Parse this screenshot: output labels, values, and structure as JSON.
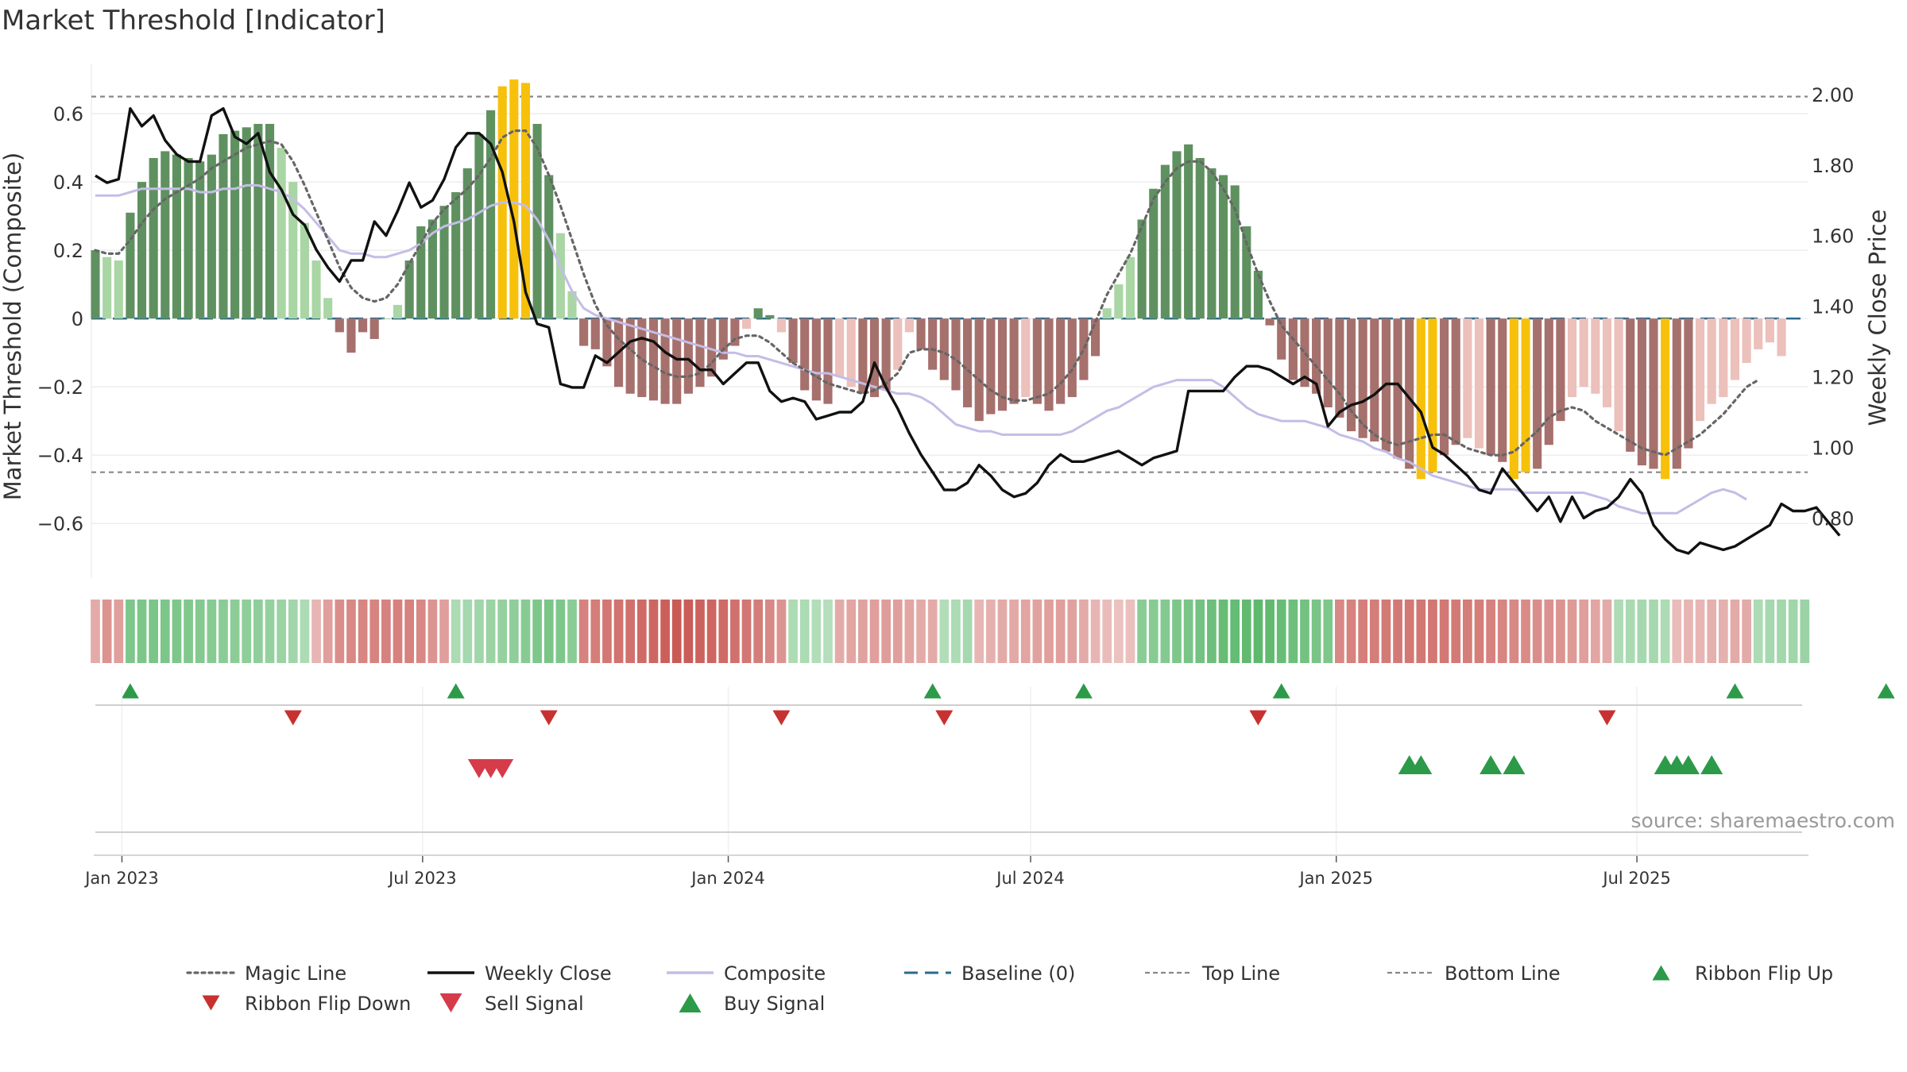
{
  "title": "Market Threshold [Indicator]",
  "source": "source: sharemaestro.com",
  "colors": {
    "bar_pos_strong": "#5f9160",
    "bar_pos_weak": "#a9d6a4",
    "bar_neg_strong": "#a6706c",
    "bar_neg_weak": "#ecc0bb",
    "bar_extreme": "#f7c10b",
    "weekly_close": "#111111",
    "composite": "#c4bde6",
    "magic_line": "#666666",
    "baseline": "#2b6a8e",
    "threshold_lines": "#888888",
    "buy": "#2c9a48",
    "sell": "#d63b4a",
    "ribbon_flip_up": "#2c9a48",
    "ribbon_flip_down": "#c7312f",
    "ribbon_green": "#5cb86c",
    "ribbon_red": "#c95a55"
  },
  "chart_data": {
    "type": "bar",
    "x_start": "2022-12-16",
    "left_axis": {
      "label": "Market Threshold (Composite)",
      "ylim": [
        -0.76,
        0.77
      ],
      "ticks": [
        0.6,
        0.4,
        0.2,
        0,
        -0.2,
        -0.4,
        -0.6
      ],
      "tick_labels": [
        "0.6",
        "0.4",
        "0.2",
        "0",
        "−0.2",
        "−0.4",
        "−0.6"
      ]
    },
    "right_axis": {
      "label": "Weekly Close Price",
      "ylim": [
        0.63,
        2.11
      ],
      "ticks": [
        2.0,
        1.8,
        1.6,
        1.4,
        1.2,
        1.0,
        0.8
      ],
      "tick_labels": [
        "2.00",
        "1.80",
        "1.60",
        "1.40",
        "1.20",
        "1.00",
        "0.80"
      ]
    },
    "x_ticks": [
      {
        "date": "2023-01-01",
        "label": "Jan 2023"
      },
      {
        "date": "2023-07-01",
        "label": "Jul 2023"
      },
      {
        "date": "2024-01-01",
        "label": "Jan 2024"
      },
      {
        "date": "2024-07-01",
        "label": "Jul 2024"
      },
      {
        "date": "2025-01-01",
        "label": "Jan 2025"
      },
      {
        "date": "2025-07-01",
        "label": "Jul 2025"
      }
    ],
    "top_line": 0.65,
    "bottom_line": -0.45,
    "composite_bars": [
      0.2,
      0.18,
      0.17,
      0.31,
      0.4,
      0.47,
      0.49,
      0.48,
      0.47,
      0.46,
      0.48,
      0.54,
      0.55,
      0.56,
      0.57,
      0.57,
      0.5,
      0.4,
      0.28,
      0.17,
      0.06,
      -0.04,
      -0.1,
      -0.04,
      -0.06,
      0,
      0.04,
      0.17,
      0.27,
      0.29,
      0.33,
      0.37,
      0.44,
      0.54,
      0.61,
      0.68,
      0.7,
      0.69,
      0.57,
      0.42,
      0.25,
      0.08,
      -0.08,
      -0.09,
      -0.14,
      -0.2,
      -0.22,
      -0.23,
      -0.24,
      -0.25,
      -0.25,
      -0.22,
      -0.2,
      -0.17,
      -0.12,
      -0.08,
      -0.03,
      0.03,
      0.01,
      -0.04,
      -0.13,
      -0.21,
      -0.24,
      -0.25,
      -0.17,
      -0.2,
      -0.22,
      -0.23,
      -0.21,
      -0.15,
      -0.04,
      -0.09,
      -0.15,
      -0.18,
      -0.21,
      -0.26,
      -0.3,
      -0.28,
      -0.27,
      -0.25,
      -0.23,
      -0.25,
      -0.27,
      -0.25,
      -0.23,
      -0.18,
      -0.11,
      0.03,
      0.1,
      0.18,
      0.29,
      0.38,
      0.45,
      0.49,
      0.51,
      0.47,
      0.44,
      0.42,
      0.39,
      0.27,
      0.14,
      -0.02,
      -0.12,
      -0.18,
      -0.2,
      -0.22,
      -0.26,
      -0.29,
      -0.33,
      -0.35,
      -0.36,
      -0.39,
      -0.41,
      -0.44,
      -0.47,
      -0.45,
      -0.4,
      -0.37,
      -0.35,
      -0.38,
      -0.4,
      -0.42,
      -0.47,
      -0.45,
      -0.44,
      -0.37,
      -0.3,
      -0.23,
      -0.2,
      -0.22,
      -0.26,
      -0.33,
      -0.39,
      -0.43,
      -0.44,
      -0.47,
      -0.44,
      -0.38,
      -0.3,
      -0.25,
      -0.23,
      -0.18,
      -0.13,
      -0.09,
      -0.07,
      -0.11
    ],
    "magic_line": [
      0.2,
      0.19,
      0.19,
      0.23,
      0.28,
      0.32,
      0.35,
      0.37,
      0.39,
      0.41,
      0.44,
      0.46,
      0.48,
      0.5,
      0.51,
      0.52,
      0.51,
      0.46,
      0.39,
      0.31,
      0.23,
      0.15,
      0.09,
      0.06,
      0.05,
      0.06,
      0.1,
      0.16,
      0.22,
      0.28,
      0.32,
      0.35,
      0.38,
      0.42,
      0.47,
      0.53,
      0.55,
      0.55,
      0.5,
      0.42,
      0.33,
      0.23,
      0.13,
      0.04,
      -0.02,
      -0.06,
      -0.09,
      -0.12,
      -0.14,
      -0.16,
      -0.17,
      -0.17,
      -0.16,
      -0.13,
      -0.09,
      -0.06,
      -0.05,
      -0.05,
      -0.07,
      -0.1,
      -0.13,
      -0.15,
      -0.17,
      -0.19,
      -0.2,
      -0.21,
      -0.22,
      -0.21,
      -0.19,
      -0.16,
      -0.1,
      -0.09,
      -0.09,
      -0.1,
      -0.12,
      -0.15,
      -0.18,
      -0.21,
      -0.23,
      -0.24,
      -0.24,
      -0.23,
      -0.22,
      -0.19,
      -0.15,
      -0.09,
      -0.01,
      0.07,
      0.13,
      0.19,
      0.27,
      0.35,
      0.4,
      0.44,
      0.46,
      0.46,
      0.43,
      0.38,
      0.32,
      0.22,
      0.13,
      0.05,
      -0.02,
      -0.06,
      -0.1,
      -0.14,
      -0.18,
      -0.22,
      -0.27,
      -0.31,
      -0.34,
      -0.36,
      -0.37,
      -0.36,
      -0.35,
      -0.34,
      -0.34,
      -0.36,
      -0.38,
      -0.39,
      -0.4,
      -0.4,
      -0.39,
      -0.36,
      -0.33,
      -0.29,
      -0.27,
      -0.26,
      -0.27,
      -0.3,
      -0.32,
      -0.34,
      -0.36,
      -0.38,
      -0.39,
      -0.4,
      -0.38,
      -0.36,
      -0.34,
      -0.31,
      -0.28,
      -0.24,
      -0.2,
      -0.18
    ],
    "composite_line": [
      0.36,
      0.36,
      0.36,
      0.37,
      0.38,
      0.38,
      0.38,
      0.38,
      0.38,
      0.37,
      0.37,
      0.38,
      0.38,
      0.39,
      0.39,
      0.38,
      0.37,
      0.35,
      0.32,
      0.28,
      0.24,
      0.2,
      0.19,
      0.19,
      0.18,
      0.18,
      0.19,
      0.2,
      0.22,
      0.25,
      0.27,
      0.28,
      0.29,
      0.31,
      0.33,
      0.34,
      0.34,
      0.33,
      0.29,
      0.23,
      0.15,
      0.08,
      0.03,
      0.01,
      0,
      -0.01,
      -0.02,
      -0.03,
      -0.04,
      -0.05,
      -0.06,
      -0.07,
      -0.08,
      -0.09,
      -0.1,
      -0.1,
      -0.11,
      -0.11,
      -0.12,
      -0.13,
      -0.14,
      -0.15,
      -0.16,
      -0.16,
      -0.17,
      -0.18,
      -0.19,
      -0.2,
      -0.21,
      -0.22,
      -0.22,
      -0.23,
      -0.25,
      -0.28,
      -0.31,
      -0.32,
      -0.33,
      -0.33,
      -0.34,
      -0.34,
      -0.34,
      -0.34,
      -0.34,
      -0.34,
      -0.33,
      -0.31,
      -0.29,
      -0.27,
      -0.26,
      -0.24,
      -0.22,
      -0.2,
      -0.19,
      -0.18,
      -0.18,
      -0.18,
      -0.18,
      -0.2,
      -0.23,
      -0.26,
      -0.28,
      -0.29,
      -0.3,
      -0.3,
      -0.3,
      -0.31,
      -0.32,
      -0.34,
      -0.35,
      -0.36,
      -0.38,
      -0.39,
      -0.41,
      -0.42,
      -0.44,
      -0.46,
      -0.47,
      -0.48,
      -0.49,
      -0.5,
      -0.5,
      -0.5,
      -0.5,
      -0.51,
      -0.51,
      -0.51,
      -0.51,
      -0.51,
      -0.51,
      -0.52,
      -0.53,
      -0.55,
      -0.56,
      -0.57,
      -0.57,
      -0.57,
      -0.57,
      -0.55,
      -0.53,
      -0.51,
      -0.5,
      -0.51,
      -0.53
    ],
    "weekly_close": [
      1.77,
      1.75,
      1.76,
      1.96,
      1.91,
      1.94,
      1.87,
      1.83,
      1.81,
      1.81,
      1.94,
      1.96,
      1.88,
      1.86,
      1.89,
      1.78,
      1.73,
      1.66,
      1.63,
      1.56,
      1.51,
      1.47,
      1.53,
      1.53,
      1.64,
      1.6,
      1.67,
      1.75,
      1.68,
      1.7,
      1.76,
      1.85,
      1.89,
      1.89,
      1.86,
      1.78,
      1.64,
      1.44,
      1.35,
      1.34,
      1.18,
      1.17,
      1.17,
      1.26,
      1.24,
      1.27,
      1.3,
      1.31,
      1.3,
      1.27,
      1.25,
      1.25,
      1.22,
      1.22,
      1.18,
      1.21,
      1.24,
      1.24,
      1.16,
      1.13,
      1.14,
      1.13,
      1.08,
      1.09,
      1.1,
      1.1,
      1.13,
      1.24,
      1.17,
      1.11,
      1.04,
      0.98,
      0.93,
      0.88,
      0.88,
      0.9,
      0.95,
      0.92,
      0.88,
      0.86,
      0.87,
      0.9,
      0.95,
      0.98,
      0.96,
      0.96,
      0.97,
      0.98,
      0.99,
      0.97,
      0.95,
      0.97,
      0.98,
      0.99,
      1.16,
      1.16,
      1.16,
      1.16,
      1.2,
      1.23,
      1.23,
      1.22,
      1.2,
      1.18,
      1.2,
      1.18,
      1.06,
      1.1,
      1.12,
      1.13,
      1.15,
      1.18,
      1.18,
      1.14,
      1.1,
      1.0,
      0.98,
      0.95,
      0.92,
      0.88,
      0.87,
      0.94,
      0.9,
      0.86,
      0.82,
      0.86,
      0.79,
      0.86,
      0.8,
      0.82,
      0.83,
      0.86,
      0.91,
      0.87,
      0.78,
      0.74,
      0.71,
      0.7,
      0.73,
      0.72,
      0.71,
      0.72,
      0.74,
      0.76,
      0.78,
      0.84,
      0.82,
      0.82,
      0.83,
      0.79,
      0.75
    ],
    "ribbon": [
      -0.3,
      -0.5,
      -0.4,
      0.7,
      0.72,
      0.74,
      0.72,
      0.7,
      0.68,
      0.65,
      0.62,
      0.6,
      0.58,
      0.56,
      0.55,
      0.5,
      0.45,
      0.4,
      0.3,
      -0.2,
      -0.4,
      -0.55,
      -0.6,
      -0.62,
      -0.64,
      -0.65,
      -0.66,
      -0.65,
      -0.6,
      -0.5,
      -0.4,
      0.3,
      0.35,
      0.4,
      0.45,
      0.5,
      0.55,
      0.62,
      0.7,
      0.74,
      0.7,
      0.6,
      -0.65,
      -0.7,
      -0.75,
      -0.78,
      -0.8,
      -0.85,
      -0.9,
      -0.95,
      -1.0,
      -0.97,
      -0.93,
      -0.9,
      -0.85,
      -0.8,
      -0.75,
      -0.7,
      -0.6,
      -0.5,
      0.3,
      0.3,
      0.25,
      0.22,
      -0.3,
      -0.35,
      -0.38,
      -0.4,
      -0.42,
      -0.4,
      -0.35,
      -0.3,
      -0.3,
      0.25,
      0.3,
      0.35,
      -0.2,
      -0.25,
      -0.3,
      -0.32,
      -0.35,
      -0.38,
      -0.4,
      -0.4,
      -0.38,
      -0.3,
      -0.2,
      -0.15,
      -0.1,
      -0.12,
      0.6,
      0.62,
      0.65,
      0.7,
      0.75,
      0.8,
      0.85,
      0.9,
      0.92,
      0.95,
      0.98,
      0.95,
      0.9,
      0.85,
      0.8,
      0.75,
      0.7,
      -0.6,
      -0.65,
      -0.68,
      -0.7,
      -0.72,
      -0.73,
      -0.74,
      -0.75,
      -0.75,
      -0.74,
      -0.72,
      -0.7,
      -0.68,
      -0.65,
      -0.62,
      -0.6,
      -0.58,
      -0.55,
      -0.52,
      -0.5,
      -0.45,
      -0.4,
      -0.35,
      -0.3,
      0.3,
      0.32,
      0.35,
      0.35,
      0.3,
      -0.15,
      -0.2,
      -0.2,
      -0.25,
      -0.25,
      -0.3,
      -0.3,
      0.3,
      0.35,
      0.38,
      0.4,
      0.45
    ],
    "ribbon_flip_up_weeks": [
      3,
      31,
      72,
      85,
      102,
      141,
      154
    ],
    "ribbon_flip_down_weeks": [
      17,
      39,
      59,
      73,
      100,
      130
    ],
    "sell_signal_weeks": [
      33,
      34,
      35
    ],
    "buy_signal_weeks": [
      113,
      114,
      120,
      122,
      135,
      136,
      137,
      139
    ],
    "legend": [
      {
        "label": "Magic Line",
        "style": "dotted"
      },
      {
        "label": "Weekly Close",
        "style": "solid-black"
      },
      {
        "label": "Composite",
        "style": "solid-lavender"
      },
      {
        "label": "Baseline (0)",
        "style": "dashed-blue"
      },
      {
        "label": "Top Line",
        "style": "dashed-gray"
      },
      {
        "label": "Bottom Line",
        "style": "dashed-gray"
      },
      {
        "label": "Ribbon Flip Up",
        "style": "triangle-up"
      },
      {
        "label": "Ribbon Flip Down",
        "style": "triangle-down"
      },
      {
        "label": "Sell Signal",
        "style": "triangle-down-large"
      },
      {
        "label": "Buy Signal",
        "style": "triangle-up-large"
      }
    ]
  }
}
